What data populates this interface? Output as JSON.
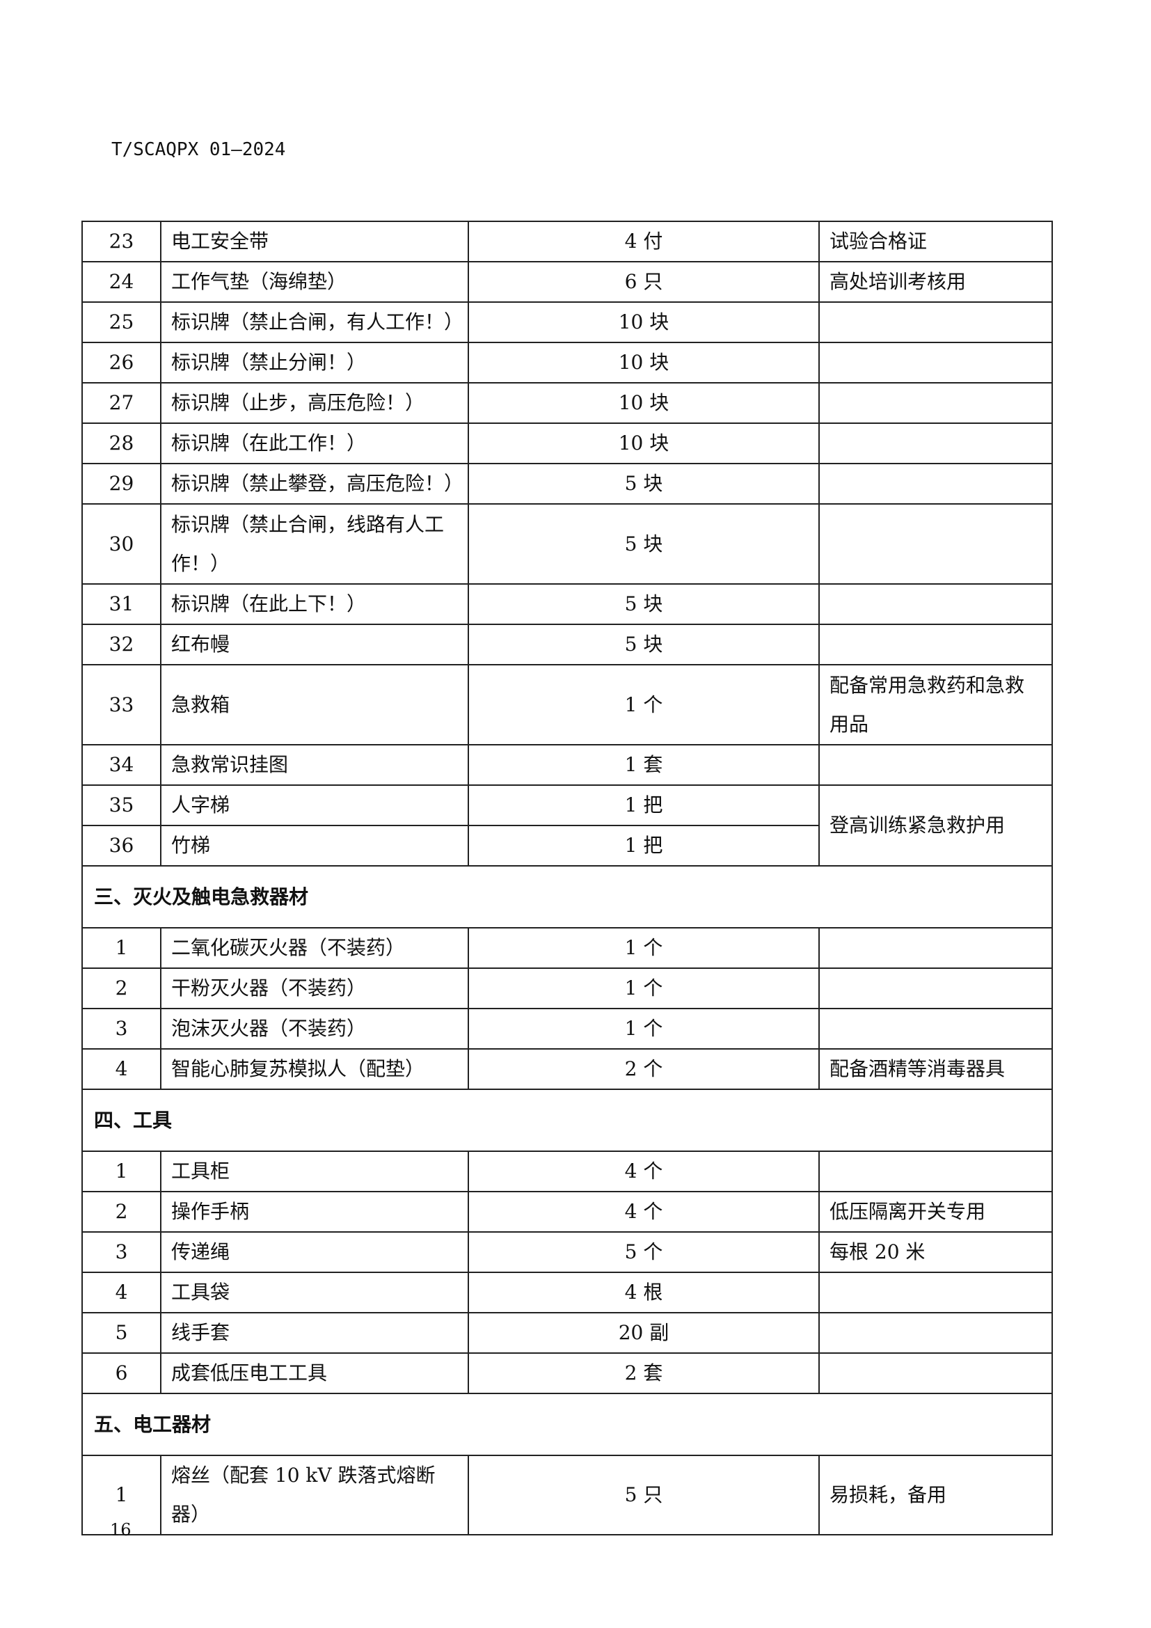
{
  "header": {
    "doc_code": "T/SCAQPX 01—2024"
  },
  "page_number": "16",
  "rows": [
    {
      "type": "item",
      "no": "23",
      "name": "电工安全带",
      "qty": "4 付",
      "remark": "试验合格证"
    },
    {
      "type": "item",
      "no": "24",
      "name": "工作气垫（海绵垫）",
      "qty": "6 只",
      "remark": "高处培训考核用"
    },
    {
      "type": "item",
      "no": "25",
      "name": "标识牌（禁止合闸，有人工作！）",
      "qty": "10 块",
      "remark": ""
    },
    {
      "type": "item",
      "no": "26",
      "name": "标识牌（禁止分闸！）",
      "qty": "10 块",
      "remark": ""
    },
    {
      "type": "item",
      "no": "27",
      "name": "标识牌（止步，高压危险！）",
      "qty": "10 块",
      "remark": ""
    },
    {
      "type": "item",
      "no": "28",
      "name": "标识牌（在此工作！）",
      "qty": "10 块",
      "remark": ""
    },
    {
      "type": "item",
      "no": "29",
      "name": "标识牌（禁止攀登，高压危险！）",
      "qty": "5 块",
      "remark": ""
    },
    {
      "type": "item",
      "no": "30",
      "name": "标识牌（禁止合闸，线路有人工作！）",
      "qty": "5 块",
      "remark": "",
      "tall": true
    },
    {
      "type": "item",
      "no": "31",
      "name": "标识牌（在此上下！）",
      "qty": "5 块",
      "remark": ""
    },
    {
      "type": "item",
      "no": "32",
      "name": "红布幔",
      "qty": "5 块",
      "remark": ""
    },
    {
      "type": "item",
      "no": "33",
      "name": "急救箱",
      "qty": "1 个",
      "remark": "配备常用急救药和急救用品",
      "tall": true
    },
    {
      "type": "item",
      "no": "34",
      "name": "急救常识挂图",
      "qty": "1 套",
      "remark": ""
    },
    {
      "type": "item",
      "no": "35",
      "name": "人字梯",
      "qty": "1 把",
      "remark": "登高训练紧急救护用",
      "remark_rowspan": 2
    },
    {
      "type": "item",
      "no": "36",
      "name": "竹梯",
      "qty": "1 把",
      "remark_merged": true
    },
    {
      "type": "section",
      "title": "三、灭火及触电急救器材"
    },
    {
      "type": "item",
      "no": "1",
      "name": "二氧化碳灭火器（不装药）",
      "qty": "1 个",
      "remark": ""
    },
    {
      "type": "item",
      "no": "2",
      "name": "干粉灭火器（不装药）",
      "qty": "1 个",
      "remark": ""
    },
    {
      "type": "item",
      "no": "3",
      "name": "泡沫灭火器（不装药）",
      "qty": "1 个",
      "remark": ""
    },
    {
      "type": "item",
      "no": "4",
      "name": "智能心肺复苏模拟人（配垫）",
      "qty": "2 个",
      "remark": "配备酒精等消毒器具"
    },
    {
      "type": "section",
      "title": "四、工具"
    },
    {
      "type": "item",
      "no": "1",
      "name": "工具柜",
      "qty": "4 个",
      "remark": ""
    },
    {
      "type": "item",
      "no": "2",
      "name": "操作手柄",
      "qty": "4 个",
      "remark": "低压隔离开关专用"
    },
    {
      "type": "item",
      "no": "3",
      "name": "传递绳",
      "qty": "5 个",
      "remark": "每根 20 米"
    },
    {
      "type": "item",
      "no": "4",
      "name": "工具袋",
      "qty": "4 根",
      "remark": ""
    },
    {
      "type": "item",
      "no": "5",
      "name": "线手套",
      "qty": "20 副",
      "remark": ""
    },
    {
      "type": "item",
      "no": "6",
      "name": "成套低压电工工具",
      "qty": "2 套",
      "remark": ""
    },
    {
      "type": "section",
      "title": "五、电工器材"
    },
    {
      "type": "item",
      "no": "1",
      "name": "熔丝（配套 10 kV 跌落式熔断器）",
      "qty": "5 只",
      "remark": "易损耗，备用"
    }
  ]
}
